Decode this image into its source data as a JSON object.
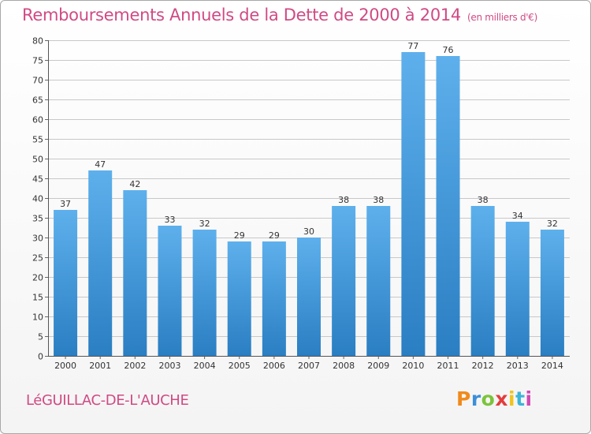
{
  "title": "Remboursements Annuels de la Dette de 2000 à 2014",
  "unit": "(en milliers d'€)",
  "commune": "LéGUILLAC-DE-L'AUCHE",
  "logo": {
    "letters": [
      "P",
      "r",
      "o",
      "x",
      "i",
      "t",
      "i"
    ]
  },
  "colors": {
    "bar_top": "#5eb0ec",
    "bar_bottom": "#2a7ec2",
    "title": "#d04a84",
    "grid": "#c8c8c8"
  },
  "chart_data": {
    "type": "bar",
    "categories": [
      "2000",
      "2001",
      "2002",
      "2003",
      "2004",
      "2005",
      "2006",
      "2007",
      "2008",
      "2009",
      "2010",
      "2011",
      "2012",
      "2013",
      "2014"
    ],
    "values": [
      37,
      47,
      42,
      33,
      32,
      29,
      29,
      30,
      38,
      38,
      77,
      76,
      38,
      34,
      32
    ],
    "ylim": [
      0,
      80
    ],
    "yticks": [
      0,
      5,
      10,
      15,
      20,
      25,
      30,
      35,
      40,
      45,
      50,
      55,
      60,
      65,
      70,
      75,
      80
    ],
    "grid": true,
    "legend": "none"
  }
}
